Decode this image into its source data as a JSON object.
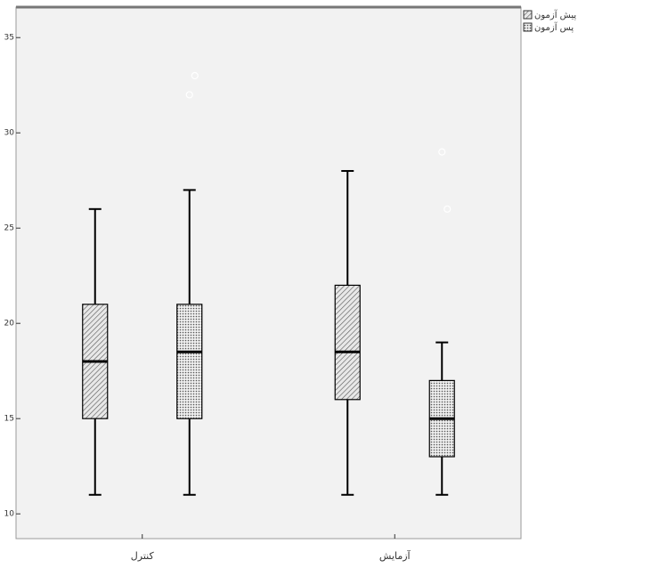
{
  "chart_data": {
    "type": "box",
    "categories": [
      "کنترل",
      "آزمایش"
    ],
    "series": [
      {
        "name": "پیش آزمون",
        "color": "#9a9a9a",
        "values": [
          {
            "min": 11,
            "q1": 15,
            "median": 18,
            "q3": 21,
            "max": 26,
            "outliers": []
          },
          {
            "min": 11,
            "q1": 16,
            "median": 18.5,
            "q3": 22,
            "max": 28,
            "outliers": []
          }
        ]
      },
      {
        "name": "پس آزمون",
        "color": "#bdbdbd",
        "values": [
          {
            "min": 11,
            "q1": 15,
            "median": 18.5,
            "q3": 21,
            "max": 27,
            "outliers": [
              32,
              33
            ]
          },
          {
            "min": 11,
            "q1": 13,
            "median": 15,
            "q3": 17,
            "max": 19,
            "outliers": [
              29,
              26
            ]
          }
        ]
      }
    ],
    "ylim": [
      8.7,
      36.6
    ],
    "yticks": [
      10,
      15,
      20,
      25,
      30,
      35
    ]
  }
}
